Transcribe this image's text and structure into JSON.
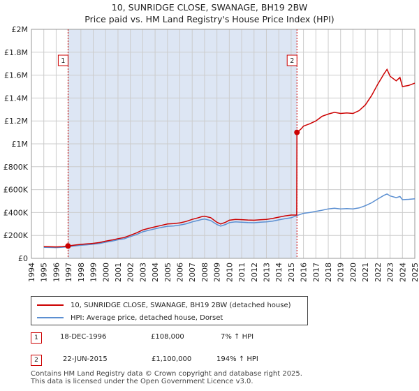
{
  "title_line1": "10, SUNRIDGE CLOSE, SWANAGE, BH19 2BW",
  "title_line2": "Price paid vs. HM Land Registry's House Price Index (HPI)",
  "colors": {
    "property": "#cc0000",
    "hpi": "#5b8fd1",
    "shade": "#dde6f4"
  },
  "legend": {
    "property": "10, SUNRIDGE CLOSE, SWANAGE, BH19 2BW (detached house)",
    "hpi": "HPI: Average price, detached house, Dorset"
  },
  "transactions": [
    {
      "num": "1",
      "date": "18-DEC-1996",
      "price": "£108,000",
      "hpi_change": "7% ↑ HPI"
    },
    {
      "num": "2",
      "date": "22-JUN-2015",
      "price": "£1,100,000",
      "hpi_change": "194% ↑ HPI"
    }
  ],
  "footer_line1": "Contains HM Land Registry data © Crown copyright and database right 2025.",
  "footer_line2": "This data is licensed under the Open Government Licence v3.0.",
  "chart_data": {
    "type": "line",
    "title": "10, SUNRIDGE CLOSE, SWANAGE, BH19 2BW — Price paid vs. HM Land Registry's House Price Index (HPI)",
    "xlim": [
      1994,
      2025
    ],
    "ylim": [
      0,
      2000000
    ],
    "x_ticks": [
      "1994",
      "1995",
      "1996",
      "1997",
      "1998",
      "1999",
      "2000",
      "2001",
      "2002",
      "2003",
      "2004",
      "2005",
      "2006",
      "2007",
      "2008",
      "2009",
      "2010",
      "2011",
      "2012",
      "2013",
      "2014",
      "2015",
      "2016",
      "2017",
      "2018",
      "2019",
      "2020",
      "2021",
      "2022",
      "2023",
      "2024",
      "2025"
    ],
    "y_ticks": [
      {
        "value": 0,
        "label": "£0"
      },
      {
        "value": 200000,
        "label": "£200K"
      },
      {
        "value": 400000,
        "label": "£400K"
      },
      {
        "value": 600000,
        "label": "£600K"
      },
      {
        "value": 800000,
        "label": "£800K"
      },
      {
        "value": 1000000,
        "label": "£1M"
      },
      {
        "value": 1200000,
        "label": "£1.2M"
      },
      {
        "value": 1400000,
        "label": "£1.4M"
      },
      {
        "value": 1600000,
        "label": "£1.6M"
      },
      {
        "value": 1800000,
        "label": "£1.8M"
      },
      {
        "value": 2000000,
        "label": "£2M"
      }
    ],
    "shaded_period": [
      1996.96,
      2015.47
    ],
    "annotations": [
      {
        "label": "1",
        "x": 1996.96,
        "y": 108000
      },
      {
        "label": "2",
        "x": 2015.47,
        "y": 1100000
      }
    ],
    "series": [
      {
        "name": "10, SUNRIDGE CLOSE, SWANAGE, BH19 2BW (detached house)",
        "points": [
          [
            1995,
            102000
          ],
          [
            1995.5,
            101000
          ],
          [
            1996,
            100000
          ],
          [
            1996.5,
            102000
          ],
          [
            1996.96,
            108000
          ],
          [
            1997.5,
            116000
          ],
          [
            1998,
            122000
          ],
          [
            1998.5,
            126000
          ],
          [
            1999,
            131000
          ],
          [
            1999.5,
            138000
          ],
          [
            2000,
            150000
          ],
          [
            2000.5,
            160000
          ],
          [
            2001,
            172000
          ],
          [
            2001.5,
            182000
          ],
          [
            2002,
            202000
          ],
          [
            2002.5,
            222000
          ],
          [
            2003,
            248000
          ],
          [
            2003.5,
            262000
          ],
          [
            2004,
            275000
          ],
          [
            2004.5,
            288000
          ],
          [
            2005,
            300000
          ],
          [
            2005.5,
            303000
          ],
          [
            2006,
            310000
          ],
          [
            2006.5,
            322000
          ],
          [
            2007,
            340000
          ],
          [
            2007.5,
            355000
          ],
          [
            2007.8,
            365000
          ],
          [
            2008,
            368000
          ],
          [
            2008.5,
            355000
          ],
          [
            2009,
            315000
          ],
          [
            2009.3,
            300000
          ],
          [
            2009.7,
            315000
          ],
          [
            2010,
            333000
          ],
          [
            2010.5,
            340000
          ],
          [
            2011,
            338000
          ],
          [
            2011.5,
            335000
          ],
          [
            2012,
            333000
          ],
          [
            2012.5,
            337000
          ],
          [
            2013,
            340000
          ],
          [
            2013.5,
            348000
          ],
          [
            2014,
            360000
          ],
          [
            2014.5,
            370000
          ],
          [
            2015,
            378000
          ],
          [
            2015.45,
            378000
          ],
          [
            2015.47,
            1100000
          ],
          [
            2015.8,
            1130000
          ],
          [
            2016,
            1155000
          ],
          [
            2016.5,
            1175000
          ],
          [
            2017,
            1200000
          ],
          [
            2017.5,
            1240000
          ],
          [
            2018,
            1260000
          ],
          [
            2018.5,
            1275000
          ],
          [
            2019,
            1265000
          ],
          [
            2019.5,
            1270000
          ],
          [
            2020,
            1265000
          ],
          [
            2020.5,
            1290000
          ],
          [
            2021,
            1340000
          ],
          [
            2021.5,
            1420000
          ],
          [
            2022,
            1520000
          ],
          [
            2022.5,
            1610000
          ],
          [
            2022.75,
            1650000
          ],
          [
            2023,
            1590000
          ],
          [
            2023.5,
            1550000
          ],
          [
            2023.8,
            1580000
          ],
          [
            2024,
            1500000
          ],
          [
            2024.5,
            1510000
          ],
          [
            2025,
            1530000
          ]
        ]
      },
      {
        "name": "HPI: Average price, detached house, Dorset",
        "points": [
          [
            1995,
            96000
          ],
          [
            1995.5,
            95000
          ],
          [
            1996,
            94000
          ],
          [
            1996.5,
            97000
          ],
          [
            1996.96,
            101000
          ],
          [
            1997.5,
            108000
          ],
          [
            1998,
            114000
          ],
          [
            1998.5,
            118000
          ],
          [
            1999,
            123000
          ],
          [
            1999.5,
            130000
          ],
          [
            2000,
            141000
          ],
          [
            2000.5,
            150000
          ],
          [
            2001,
            162000
          ],
          [
            2001.5,
            171000
          ],
          [
            2002,
            190000
          ],
          [
            2002.5,
            208000
          ],
          [
            2003,
            232000
          ],
          [
            2003.5,
            245000
          ],
          [
            2004,
            258000
          ],
          [
            2004.5,
            270000
          ],
          [
            2005,
            280000
          ],
          [
            2005.5,
            283000
          ],
          [
            2006,
            290000
          ],
          [
            2006.5,
            301000
          ],
          [
            2007,
            318000
          ],
          [
            2007.5,
            332000
          ],
          [
            2007.8,
            340000
          ],
          [
            2008,
            343000
          ],
          [
            2008.5,
            330000
          ],
          [
            2009,
            295000
          ],
          [
            2009.3,
            282000
          ],
          [
            2009.7,
            296000
          ],
          [
            2010,
            312000
          ],
          [
            2010.5,
            318000
          ],
          [
            2011,
            316000
          ],
          [
            2011.5,
            313000
          ],
          [
            2012,
            311000
          ],
          [
            2012.5,
            315000
          ],
          [
            2013,
            318000
          ],
          [
            2013.5,
            325000
          ],
          [
            2014,
            336000
          ],
          [
            2014.5,
            346000
          ],
          [
            2015,
            354000
          ],
          [
            2015.47,
            374000
          ],
          [
            2016,
            393000
          ],
          [
            2016.5,
            400000
          ],
          [
            2017,
            410000
          ],
          [
            2017.5,
            420000
          ],
          [
            2018,
            432000
          ],
          [
            2018.5,
            437000
          ],
          [
            2019,
            432000
          ],
          [
            2019.5,
            435000
          ],
          [
            2020,
            432000
          ],
          [
            2020.5,
            440000
          ],
          [
            2021,
            460000
          ],
          [
            2021.5,
            485000
          ],
          [
            2022,
            518000
          ],
          [
            2022.5,
            550000
          ],
          [
            2022.75,
            562000
          ],
          [
            2023,
            545000
          ],
          [
            2023.5,
            530000
          ],
          [
            2023.8,
            540000
          ],
          [
            2024,
            512000
          ],
          [
            2024.5,
            515000
          ],
          [
            2025,
            520000
          ]
        ]
      }
    ]
  }
}
